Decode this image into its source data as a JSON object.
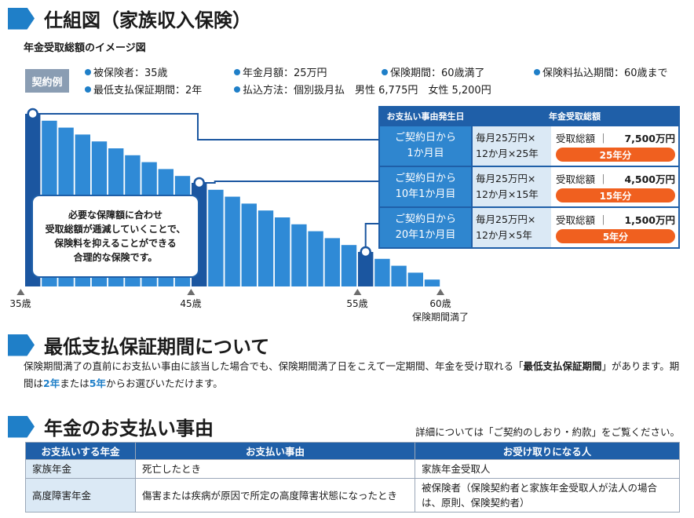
{
  "section1": {
    "title": "仕組図（家族収入保険）"
  },
  "sub_title": "年金受取総額のイメージ図",
  "contract": {
    "badge": "契約例",
    "items": [
      "被保険者：35歳",
      "年金月額：25万円",
      "保険期間：60歳満了",
      "保険料払込期間：60歳まで",
      "最低支払保証期間：2年",
      "払込方法：個別扱月払　男性 6,775円　女性 5,200円"
    ]
  },
  "callout": {
    "lines": [
      "必要な保障額に合わせ",
      "受取総額が逓減していくことで、",
      "保険料を抑えることができる",
      "合理的な保険です。"
    ]
  },
  "ages": [
    {
      "label": "35歳",
      "sub": ""
    },
    {
      "label": "45歳",
      "sub": ""
    },
    {
      "label": "55歳",
      "sub": ""
    },
    {
      "label": "60歳",
      "sub": "保険期間満了"
    }
  ],
  "benefit_table": {
    "headers": [
      "お支払い事由発生日",
      "年金受取総額"
    ],
    "rows": [
      {
        "date1": "ご契約日から",
        "date2": "1か月目",
        "calc1": "毎月25万円×",
        "calc2": "12か月×25年",
        "total_label": "受取総額 ｜",
        "total": "7,500万円",
        "years": "25年分"
      },
      {
        "date1": "ご契約日から",
        "date2": "10年1か月目",
        "calc1": "毎月25万円×",
        "calc2": "12か月×15年",
        "total_label": "受取総額 ｜",
        "total": "4,500万円",
        "years": "15年分"
      },
      {
        "date1": "ご契約日から",
        "date2": "20年1か月目",
        "calc1": "毎月25万円×",
        "calc2": "12か月×5年",
        "total_label": "受取総額 ｜",
        "total": "1,500万円",
        "years": "5年分"
      }
    ]
  },
  "section2": {
    "title": "最低支払保証期間について",
    "text_a": "保険期間満了の直前にお支払い事由に該当した場合でも、保険期間満了日をこえて一定期間、年金を受け取れる「",
    "text_b": "最低支払保証期間",
    "text_c": "」があります。期間は",
    "text_d": "2年",
    "text_e": "または",
    "text_f": "5年",
    "text_g": "からお選びいただけます。"
  },
  "section3": {
    "title": "年金のお支払い事由",
    "note": "詳細については「ご契約のしおり・約款」をご覧ください。",
    "headers": [
      "お支払いする年金",
      "お支払い事由",
      "お受け取りになる人"
    ],
    "rows": [
      {
        "name": "家族年金",
        "reason": "死亡したとき",
        "recipient": "家族年金受取人"
      },
      {
        "name": "高度障害年金",
        "reason": "傷害または疾病が原因で所定の高度障害状態になったとき",
        "recipient": "被保険者（保険契約者と家族年金受取人が法人の場合は、原則、保険契約者）"
      }
    ]
  },
  "chart_data": {
    "type": "bar",
    "title": "",
    "xlabel": "",
    "ylabel": "",
    "x_range": [
      35,
      60
    ],
    "series": [
      {
        "values": [
          25,
          24,
          23,
          22,
          21,
          20,
          19,
          18,
          17,
          16,
          15,
          14,
          13,
          12,
          11,
          10,
          9,
          8,
          7,
          6,
          5,
          4,
          3,
          2,
          1
        ]
      }
    ],
    "highlighted_indices": [
      0,
      10,
      20
    ],
    "colors": {
      "bar": "#2f8ad6",
      "highlight": "#1b56a0"
    }
  }
}
